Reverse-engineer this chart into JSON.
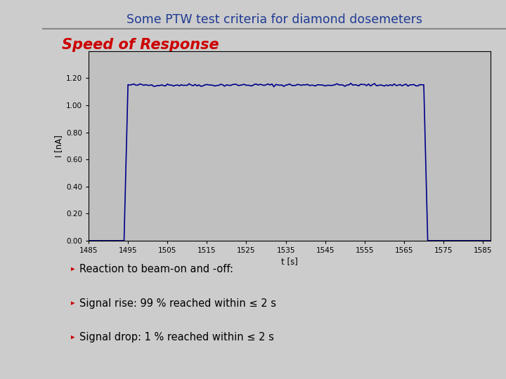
{
  "title": "Some PTW test criteria for diamond dosemeters",
  "title_color": "#1F3A93",
  "slide_title": "Speed of Response",
  "slide_title_color": "#CC0000",
  "xlabel": "t [s]",
  "ylabel": "I [nA]",
  "ylim": [
    0.0,
    1.4
  ],
  "xlim": [
    1485,
    1587
  ],
  "yticks": [
    0.0,
    0.2,
    0.4,
    0.6,
    0.8,
    1.0,
    1.2
  ],
  "xticks": [
    1485,
    1495,
    1505,
    1515,
    1525,
    1535,
    1545,
    1555,
    1565,
    1575,
    1585
  ],
  "plot_bg_color": "#C0C0C0",
  "line_color": "#00008B",
  "line_width": 1.2,
  "beam_on": 1494.0,
  "beam_off": 1570.0,
  "beam_level": 1.15,
  "noise_amplitude": 0.005,
  "bullet_color": "#CC0000",
  "bullet_text_color": "#000000",
  "bullets": [
    "Reaction to beam-on and -off:",
    "Signal rise: 99 % reached within ≤ 2 s",
    "Signal drop: 1 % reached within ≤ 2 s"
  ],
  "page_bg": "#CCCCCC",
  "left_sidebar_color": "#888888",
  "header_line_color": "#888888",
  "fig_width": 7.2,
  "fig_height": 5.4
}
